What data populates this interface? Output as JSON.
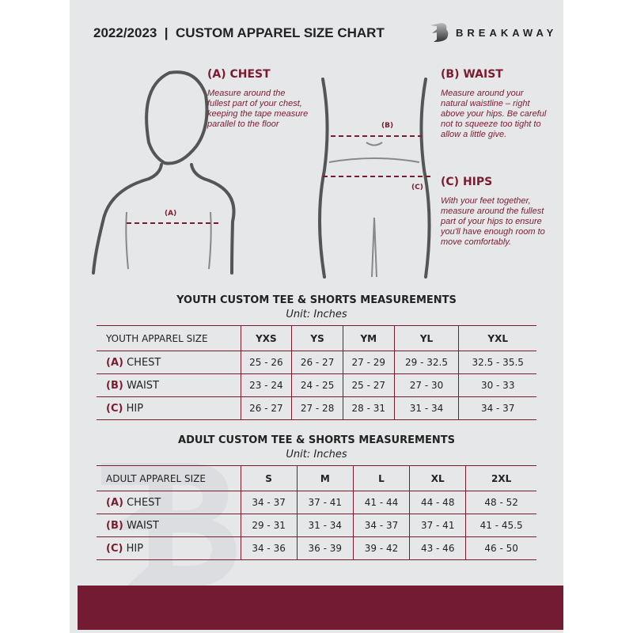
{
  "header": {
    "title": "2022/2023  |  CUSTOM APPAREL SIZE CHART",
    "brand": "BREAKAWAY",
    "logo_letter": "B"
  },
  "guide": {
    "chest": {
      "marker": "(A)",
      "heading": "(A) CHEST",
      "text": "Measure around the fullest part of your chest, keeping the tape measure parallel to the floor"
    },
    "waist": {
      "marker": "(B)",
      "heading": "(B) WAIST",
      "text": "Measure around your natural waistline – right above your hips. Be careful not to squeeze too tight to allow a little give."
    },
    "hips": {
      "marker": "(C)",
      "heading": "(C) HIPS",
      "text": "With your feet together, measure around the fullest part of your hips to ensure you'll have enough room to move comfortably."
    }
  },
  "youth": {
    "title": "YOUTH CUSTOM TEE & SHORTS MEASUREMENTS",
    "unit": "Unit: Inches",
    "size_label": "YOUTH APPAREL SIZE",
    "sizes": [
      "YXS",
      "YS",
      "YM",
      "YL",
      "YXL"
    ],
    "rows": [
      {
        "code": "(A)",
        "name": "CHEST",
        "values": [
          "25 - 26",
          "26 - 27",
          "27 - 29",
          "29 - 32.5",
          "32.5 - 35.5"
        ]
      },
      {
        "code": "(B)",
        "name": "WAIST",
        "values": [
          "23 - 24",
          "24 - 25",
          "25 - 27",
          "27 - 30",
          "30 - 33"
        ]
      },
      {
        "code": "(C)",
        "name": "HIP",
        "values": [
          "26 - 27",
          "27 - 28",
          "28 - 31",
          "31 - 34",
          "34 - 37"
        ]
      }
    ]
  },
  "adult": {
    "title": "ADULT CUSTOM TEE & SHORTS MEASUREMENTS",
    "unit": "Unit: Inches",
    "size_label": "ADULT APPAREL SIZE",
    "sizes": [
      "S",
      "M",
      "L",
      "XL",
      "2XL"
    ],
    "rows": [
      {
        "code": "(A)",
        "name": "CHEST",
        "values": [
          "34 - 37",
          "37 - 41",
          "41 - 44",
          "44 - 48",
          "48 - 52"
        ]
      },
      {
        "code": "(B)",
        "name": "WAIST",
        "values": [
          "29 - 31",
          "31 - 34",
          "34 - 37",
          "37 - 41",
          "41 - 45.5"
        ]
      },
      {
        "code": "(C)",
        "name": "HIP",
        "values": [
          "34 - 36",
          "36 - 39",
          "39 - 42",
          "43 - 46",
          "46 - 50"
        ]
      }
    ]
  },
  "colors": {
    "accent": "#7a1c30",
    "background": "#e6e7e9",
    "footer": "#721b32"
  }
}
